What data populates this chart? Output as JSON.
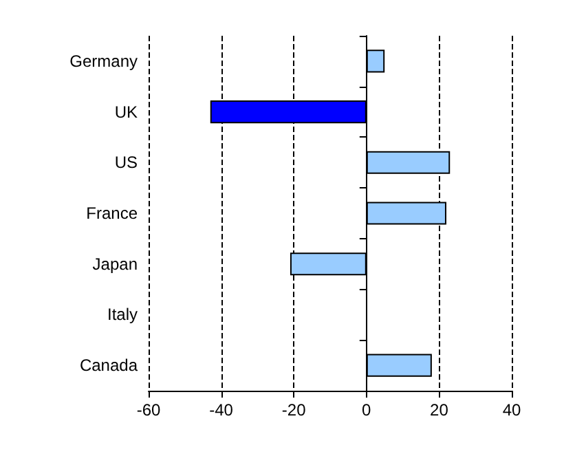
{
  "chart_data": {
    "type": "bar",
    "orientation": "horizontal",
    "categories": [
      "Germany",
      "UK",
      "US",
      "France",
      "Japan",
      "Italy",
      "Canada"
    ],
    "values": [
      5,
      -43,
      23,
      22,
      -21,
      null,
      18
    ],
    "colors": [
      "#99ccff",
      "#0000ff",
      "#99ccff",
      "#99ccff",
      "#99ccff",
      null,
      "#99ccff"
    ],
    "xlim": [
      -60,
      40
    ],
    "xticks": [
      -60,
      -40,
      -20,
      0,
      20,
      40
    ],
    "grid": "x"
  }
}
